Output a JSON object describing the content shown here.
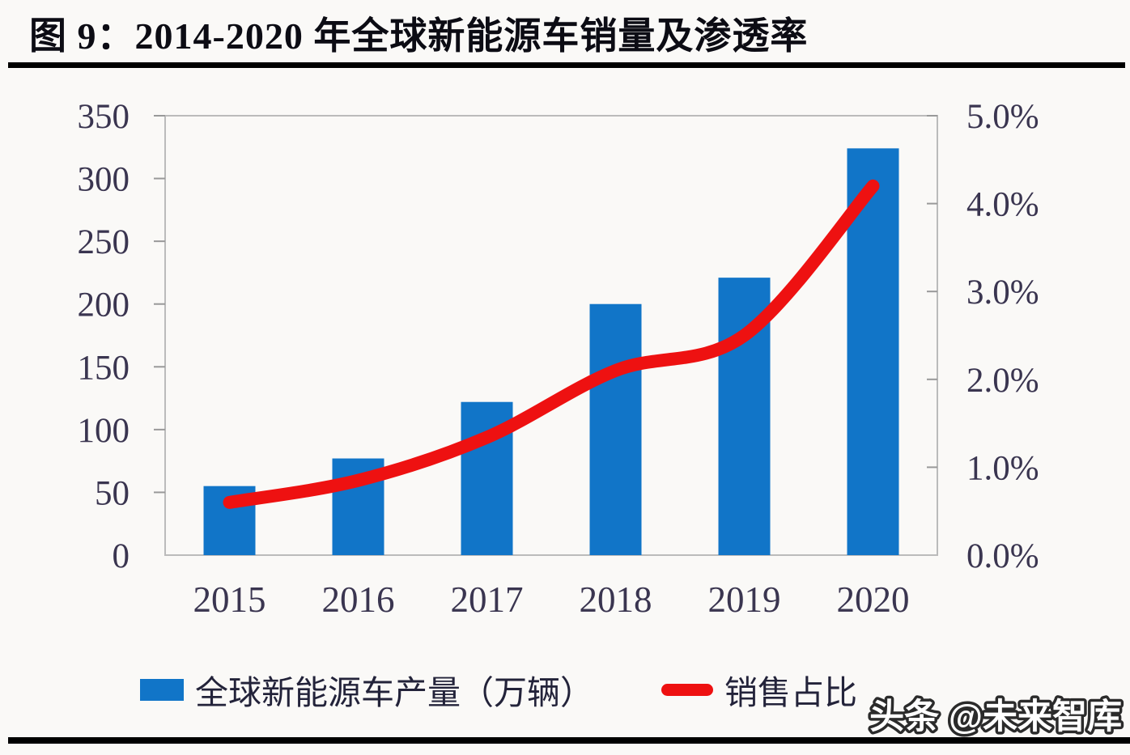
{
  "title": {
    "text": "图 9：2014-2020 年全球新能源车销量及渗透率"
  },
  "watermark": {
    "text": "头条 @未来智库"
  },
  "colors": {
    "bar": "#1175c8",
    "line": "#ee1111",
    "axis_text": "#3a3550",
    "axis_line": "#bbbbbb",
    "tick": "#999999",
    "rule": "#000000",
    "background": "#faf9f7"
  },
  "legend": [
    {
      "label": "全球新能源车产量（万辆）",
      "type": "bar",
      "color": "#1175c8"
    },
    {
      "label": "销售占比",
      "type": "line",
      "color": "#ee1111"
    }
  ],
  "chart_data": {
    "type": "bar",
    "title": "2014-2020 年全球新能源车销量及渗透率",
    "categories": [
      "2015",
      "2016",
      "2017",
      "2018",
      "2019",
      "2020"
    ],
    "series": [
      {
        "name": "全球新能源车产量（万辆）",
        "type": "bar",
        "axis": "left",
        "color": "#1175c8",
        "values": [
          55,
          77,
          122,
          200,
          221,
          324
        ]
      },
      {
        "name": "销售占比",
        "type": "line",
        "axis": "right",
        "color": "#ee1111",
        "values": [
          0.6,
          0.85,
          1.34,
          2.1,
          2.5,
          4.2
        ]
      }
    ],
    "left_axis": {
      "ylim": [
        0,
        350
      ],
      "tick_values": [
        0,
        50,
        100,
        150,
        200,
        250,
        300,
        350
      ],
      "tick_labels": [
        "0",
        "50",
        "100",
        "150",
        "200",
        "250",
        "300",
        "350"
      ]
    },
    "right_axis": {
      "ylim": [
        0,
        5
      ],
      "tick_values": [
        0,
        1,
        2,
        3,
        4,
        5
      ],
      "tick_labels": [
        "0.0%",
        "1.0%",
        "2.0%",
        "3.0%",
        "4.0%",
        "5.0%"
      ]
    },
    "grid": false,
    "legend_position": "bottom"
  }
}
